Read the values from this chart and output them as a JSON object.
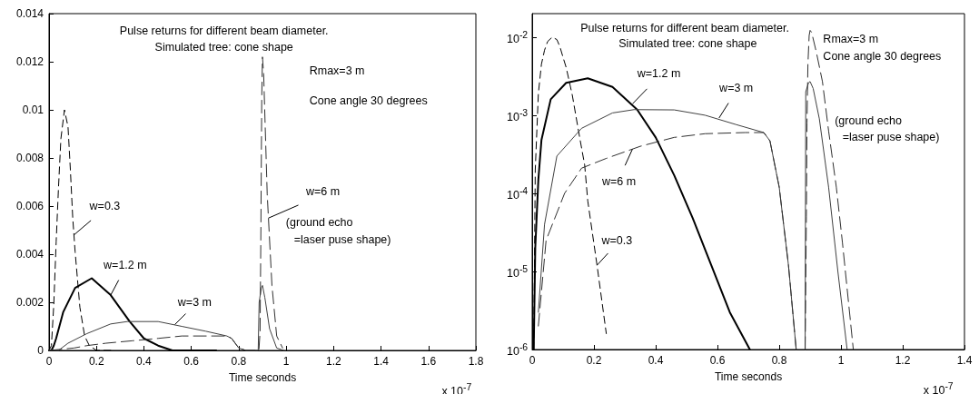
{
  "chart_data": [
    {
      "type": "line",
      "title": "Pulse returns for different beam diameter.",
      "subtitle": "Simulated tree: cone shape",
      "xlabel": "Time seconds",
      "xlim": [
        0,
        1.8
      ],
      "xticks": [
        0,
        0.2,
        0.4,
        0.6,
        0.8,
        1,
        1.2,
        1.4,
        1.6,
        1.8
      ],
      "ylim": [
        0,
        0.014
      ],
      "yticks": [
        0,
        0.002,
        0.004,
        0.006,
        0.008,
        0.01,
        0.012,
        0.014
      ],
      "grid": false,
      "annotations": [
        "Rmax=3 m",
        "Cone angle 30 degrees",
        "(ground echo",
        "=laser puse shape)",
        "x 10$^{-7}$",
        {
          "text": "w=0.3",
          "x": 0.105,
          "y": 0.0048
        },
        {
          "text": "w=1.2 m",
          "x": 0.26,
          "y": 0.0023
        },
        {
          "text": "w=3 m",
          "x": 0.53,
          "y": 0.00107
        },
        {
          "text": "w=6 m",
          "x": 0.925,
          "y": 0.0055
        }
      ],
      "series": [
        {
          "color": "#000000",
          "line_style": "dashed",
          "x": [
            0,
            0.01,
            0.02,
            0.03,
            0.04,
            0.05,
            0.065,
            0.08,
            0.09,
            0.1,
            0.11,
            0.13,
            0.15,
            0.17,
            0.2,
            0.26
          ],
          "values": [
            0,
            0.0002,
            0.0019,
            0.0045,
            0.0068,
            0.0088,
            0.01,
            0.0093,
            0.0075,
            0.0055,
            0.0041,
            0.0018,
            0.0006,
            0.0002,
            0,
            0
          ]
        },
        {
          "color": "#000000",
          "line_style": "solid",
          "x": [
            0,
            0.01,
            0.02,
            0.03,
            0.06,
            0.11,
            0.18,
            0.26,
            0.34,
            0.4,
            0.46,
            0.52,
            0.58,
            0.705
          ],
          "values": [
            0,
            0,
            0.0002,
            0.0005,
            0.0016,
            0.0026,
            0.003,
            0.0023,
            0.0012,
            0.0005,
            0.0002,
            0,
            0,
            0
          ]
        },
        {
          "color": "#404040",
          "line_style": "solid",
          "x": [
            0,
            0.04,
            0.08,
            0.16,
            0.26,
            0.33,
            0.46,
            0.56,
            0.66,
            0.75,
            0.77,
            0.8,
            0.83,
            0.882,
            0.886,
            0.895,
            0.9,
            0.91,
            0.93,
            0.96,
            0.99
          ],
          "values": [
            0,
            0,
            0.0003,
            0.0007,
            0.0011,
            0.0012,
            0.0012,
            0.001,
            0.0008,
            0.0006,
            0.0005,
            0.0001,
            0,
            0,
            0.002,
            0.0026,
            0.0027,
            0.0022,
            0.0009,
            0.0001,
            0
          ]
        },
        {
          "color": "#303030",
          "line_style": "dashed",
          "x": [
            0,
            0.105,
            0.16,
            0.24,
            0.35,
            0.46,
            0.56,
            0.69,
            0.75,
            0.77,
            0.8,
            0.83,
            0.885,
            0.89,
            0.893,
            0.897,
            0.9,
            0.905,
            0.92,
            0.94,
            0.96,
            0.985
          ],
          "values": [
            0,
            0.0001,
            0.0002,
            0.0003,
            0.0004,
            0.0005,
            0.0006,
            0.0006,
            0.0006,
            0.0005,
            0.0001,
            0,
            0,
            0.0008,
            0.0045,
            0.0105,
            0.0122,
            0.0115,
            0.0065,
            0.0027,
            0.0006,
            0.0001
          ]
        }
      ]
    },
    {
      "type": "line",
      "title": "Pulse returns for different beam diameter.",
      "subtitle": "Simulated tree: cone shape",
      "xlabel": "Time seconds",
      "log": "y",
      "xlim": [
        0,
        1.4
      ],
      "xticks": [
        0,
        0.2,
        0.4,
        0.6,
        0.8,
        1,
        1.2,
        1.4
      ],
      "ylim": [
        1e-06,
        0.02
      ],
      "yticks": [
        {
          "value": 1e-06,
          "label": "10$^{-6}$"
        },
        {
          "value": 1e-05,
          "label": "10$^{-5}$"
        },
        {
          "value": 0.0001,
          "label": "10$^{-4}$"
        },
        {
          "value": 0.001,
          "label": "10$^{-3}$"
        },
        {
          "value": 0.01,
          "label": "10$^{-2}$"
        }
      ],
      "grid": false,
      "annotations": [
        "Rmax=3 m",
        "Cone angle 30 degrees",
        "(ground echo",
        "=laser puse shape)",
        "x 10$^{-7}$",
        {
          "text": "w=1.2 m",
          "x": 0.325,
          "y": 0.0014
        },
        {
          "text": "w=3 m",
          "x": 0.605,
          "y": 0.00092
        },
        {
          "text": "w=6 m",
          "x": 0.325,
          "y": 0.00037
        },
        {
          "text": "w=0.3",
          "x": 0.21,
          "y": 1.2e-05
        }
      ],
      "series": [
        {
          "color": "#000000",
          "line_style": "dashed",
          "x": [
            0.005,
            0.01,
            0.02,
            0.03,
            0.04,
            0.05,
            0.065,
            0.08,
            0.09,
            0.1,
            0.11,
            0.13,
            0.15,
            0.17,
            0.18,
            0.21,
            0.24
          ],
          "values": [
            1e-06,
            0.0002,
            0.0019,
            0.0045,
            0.0068,
            0.0088,
            0.01,
            0.0093,
            0.0075,
            0.0055,
            0.0041,
            0.0018,
            0.00063,
            0.00023,
            8e-05,
            1.2e-05,
            1.6e-06
          ]
        },
        {
          "color": "#000000",
          "line_style": "solid",
          "x": [
            0.005,
            0.01,
            0.02,
            0.03,
            0.06,
            0.11,
            0.18,
            0.26,
            0.34,
            0.4,
            0.46,
            0.52,
            0.58,
            0.64,
            0.705
          ],
          "values": [
            1e-06,
            2e-05,
            0.00015,
            0.00048,
            0.0016,
            0.0026,
            0.00297,
            0.0023,
            0.00118,
            0.00052,
            0.00017,
            4.8e-05,
            1.2e-05,
            3e-06,
            1e-06
          ]
        },
        {
          "color": "#404040",
          "line_style": "solid",
          "x": [
            0.02,
            0.04,
            0.08,
            0.16,
            0.26,
            0.33,
            0.46,
            0.56,
            0.66,
            0.75,
            0.77,
            0.8,
            0.83,
            0.855,
            0.87,
            0.884,
            0.886,
            0.895,
            0.9,
            0.91,
            0.93,
            0.96,
            0.99,
            1.02
          ],
          "values": [
            3e-06,
            4e-05,
            0.0003,
            0.00068,
            0.00107,
            0.00118,
            0.00117,
            0.001,
            0.00076,
            0.0006,
            0.00047,
            0.00012,
            1.2e-05,
            1e-06,
            null,
            1e-06,
            0.002,
            0.0026,
            0.0027,
            0.0022,
            0.0009,
            0.00012,
            1e-05,
            1e-06
          ]
        },
        {
          "color": "#303030",
          "line_style": "dashed",
          "x": [
            0.02,
            0.045,
            0.105,
            0.16,
            0.24,
            0.35,
            0.46,
            0.56,
            0.69,
            0.75,
            0.77,
            0.8,
            0.83,
            0.855,
            0.87,
            0.884,
            0.888,
            0.89,
            0.893,
            0.897,
            0.9,
            0.905,
            0.92,
            0.94,
            0.96,
            0.985,
            1.005,
            1.04
          ],
          "values": [
            2e-06,
            2.5e-05,
            0.0001,
            0.00021,
            0.00028,
            0.0004,
            0.00052,
            0.00058,
            0.0006,
            0.0006,
            0.00047,
            0.00012,
            1.2e-05,
            1e-06,
            null,
            1e-06,
            5e-05,
            0.0008,
            0.0045,
            0.0105,
            0.0122,
            0.0115,
            0.0065,
            0.0027,
            0.00063,
            0.00012,
            2.3e-05,
            1e-06
          ]
        }
      ]
    }
  ]
}
